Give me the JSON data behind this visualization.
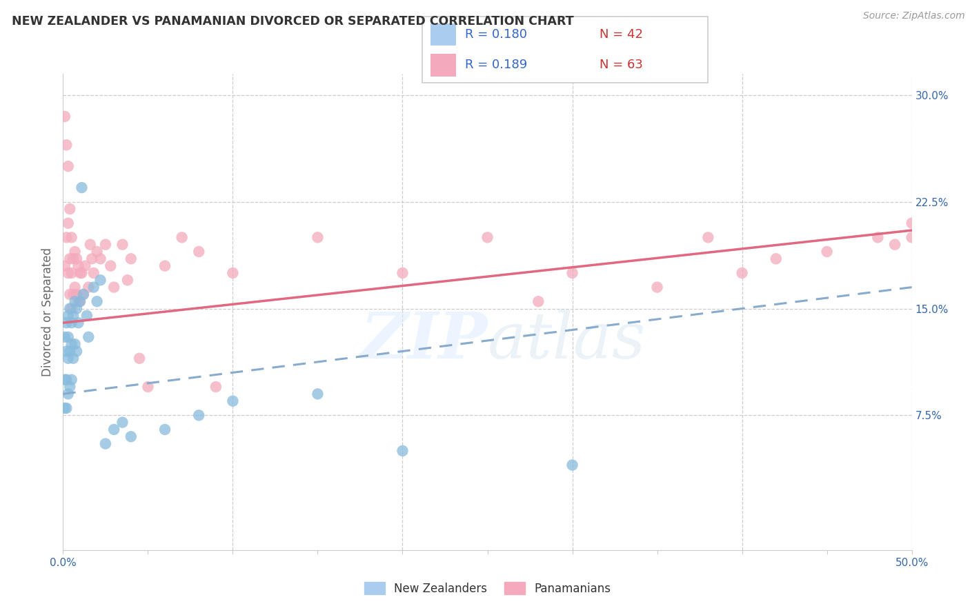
{
  "title": "NEW ZEALANDER VS PANAMANIAN DIVORCED OR SEPARATED CORRELATION CHART",
  "source": "Source: ZipAtlas.com",
  "ylabel": "Divorced or Separated",
  "legend_label_nz": "New Zealanders",
  "legend_label_pan": "Panamanians",
  "color_nz": "#88bbdd",
  "color_pan": "#f4aabc",
  "color_trend_nz": "#88aacc",
  "color_trend_pan": "#e06880",
  "xlim": [
    0.0,
    0.5
  ],
  "ylim": [
    0.0,
    0.3
  ],
  "nz_x": [
    0.001,
    0.001,
    0.001,
    0.002,
    0.002,
    0.002,
    0.002,
    0.003,
    0.003,
    0.003,
    0.003,
    0.004,
    0.004,
    0.004,
    0.005,
    0.005,
    0.005,
    0.006,
    0.006,
    0.007,
    0.007,
    0.008,
    0.008,
    0.009,
    0.01,
    0.011,
    0.012,
    0.014,
    0.015,
    0.018,
    0.02,
    0.022,
    0.025,
    0.03,
    0.035,
    0.04,
    0.06,
    0.08,
    0.1,
    0.15,
    0.2,
    0.3
  ],
  "nz_y": [
    0.13,
    0.1,
    0.08,
    0.14,
    0.12,
    0.1,
    0.08,
    0.145,
    0.13,
    0.115,
    0.09,
    0.15,
    0.12,
    0.095,
    0.14,
    0.125,
    0.1,
    0.145,
    0.115,
    0.155,
    0.125,
    0.15,
    0.12,
    0.14,
    0.155,
    0.235,
    0.16,
    0.145,
    0.13,
    0.165,
    0.155,
    0.17,
    0.055,
    0.065,
    0.07,
    0.06,
    0.065,
    0.075,
    0.085,
    0.09,
    0.05,
    0.04
  ],
  "pan_x": [
    0.001,
    0.001,
    0.002,
    0.002,
    0.003,
    0.003,
    0.003,
    0.004,
    0.004,
    0.004,
    0.005,
    0.005,
    0.005,
    0.006,
    0.006,
    0.007,
    0.007,
    0.008,
    0.008,
    0.009,
    0.009,
    0.01,
    0.01,
    0.011,
    0.012,
    0.013,
    0.015,
    0.016,
    0.017,
    0.018,
    0.02,
    0.022,
    0.025,
    0.028,
    0.03,
    0.035,
    0.038,
    0.04,
    0.045,
    0.05,
    0.06,
    0.07,
    0.08,
    0.09,
    0.1,
    0.15,
    0.2,
    0.25,
    0.28,
    0.3,
    0.35,
    0.38,
    0.4,
    0.42,
    0.45,
    0.48,
    0.49,
    0.5,
    0.5,
    0.51,
    0.52,
    0.53,
    0.54
  ],
  "pan_y": [
    0.285,
    0.18,
    0.265,
    0.2,
    0.25,
    0.21,
    0.175,
    0.22,
    0.185,
    0.16,
    0.2,
    0.175,
    0.15,
    0.185,
    0.16,
    0.19,
    0.165,
    0.185,
    0.16,
    0.18,
    0.155,
    0.175,
    0.155,
    0.175,
    0.16,
    0.18,
    0.165,
    0.195,
    0.185,
    0.175,
    0.19,
    0.185,
    0.195,
    0.18,
    0.165,
    0.195,
    0.17,
    0.185,
    0.115,
    0.095,
    0.18,
    0.2,
    0.19,
    0.095,
    0.175,
    0.2,
    0.175,
    0.2,
    0.155,
    0.175,
    0.165,
    0.2,
    0.175,
    0.185,
    0.19,
    0.2,
    0.195,
    0.2,
    0.21,
    0.2,
    0.195,
    0.195,
    0.2
  ],
  "nz_trend_x0": 0.0,
  "nz_trend_y0": 0.09,
  "nz_trend_x1": 0.5,
  "nz_trend_y1": 0.165,
  "pan_trend_x0": 0.0,
  "pan_trend_y0": 0.14,
  "pan_trend_x1": 0.5,
  "pan_trend_y1": 0.205
}
